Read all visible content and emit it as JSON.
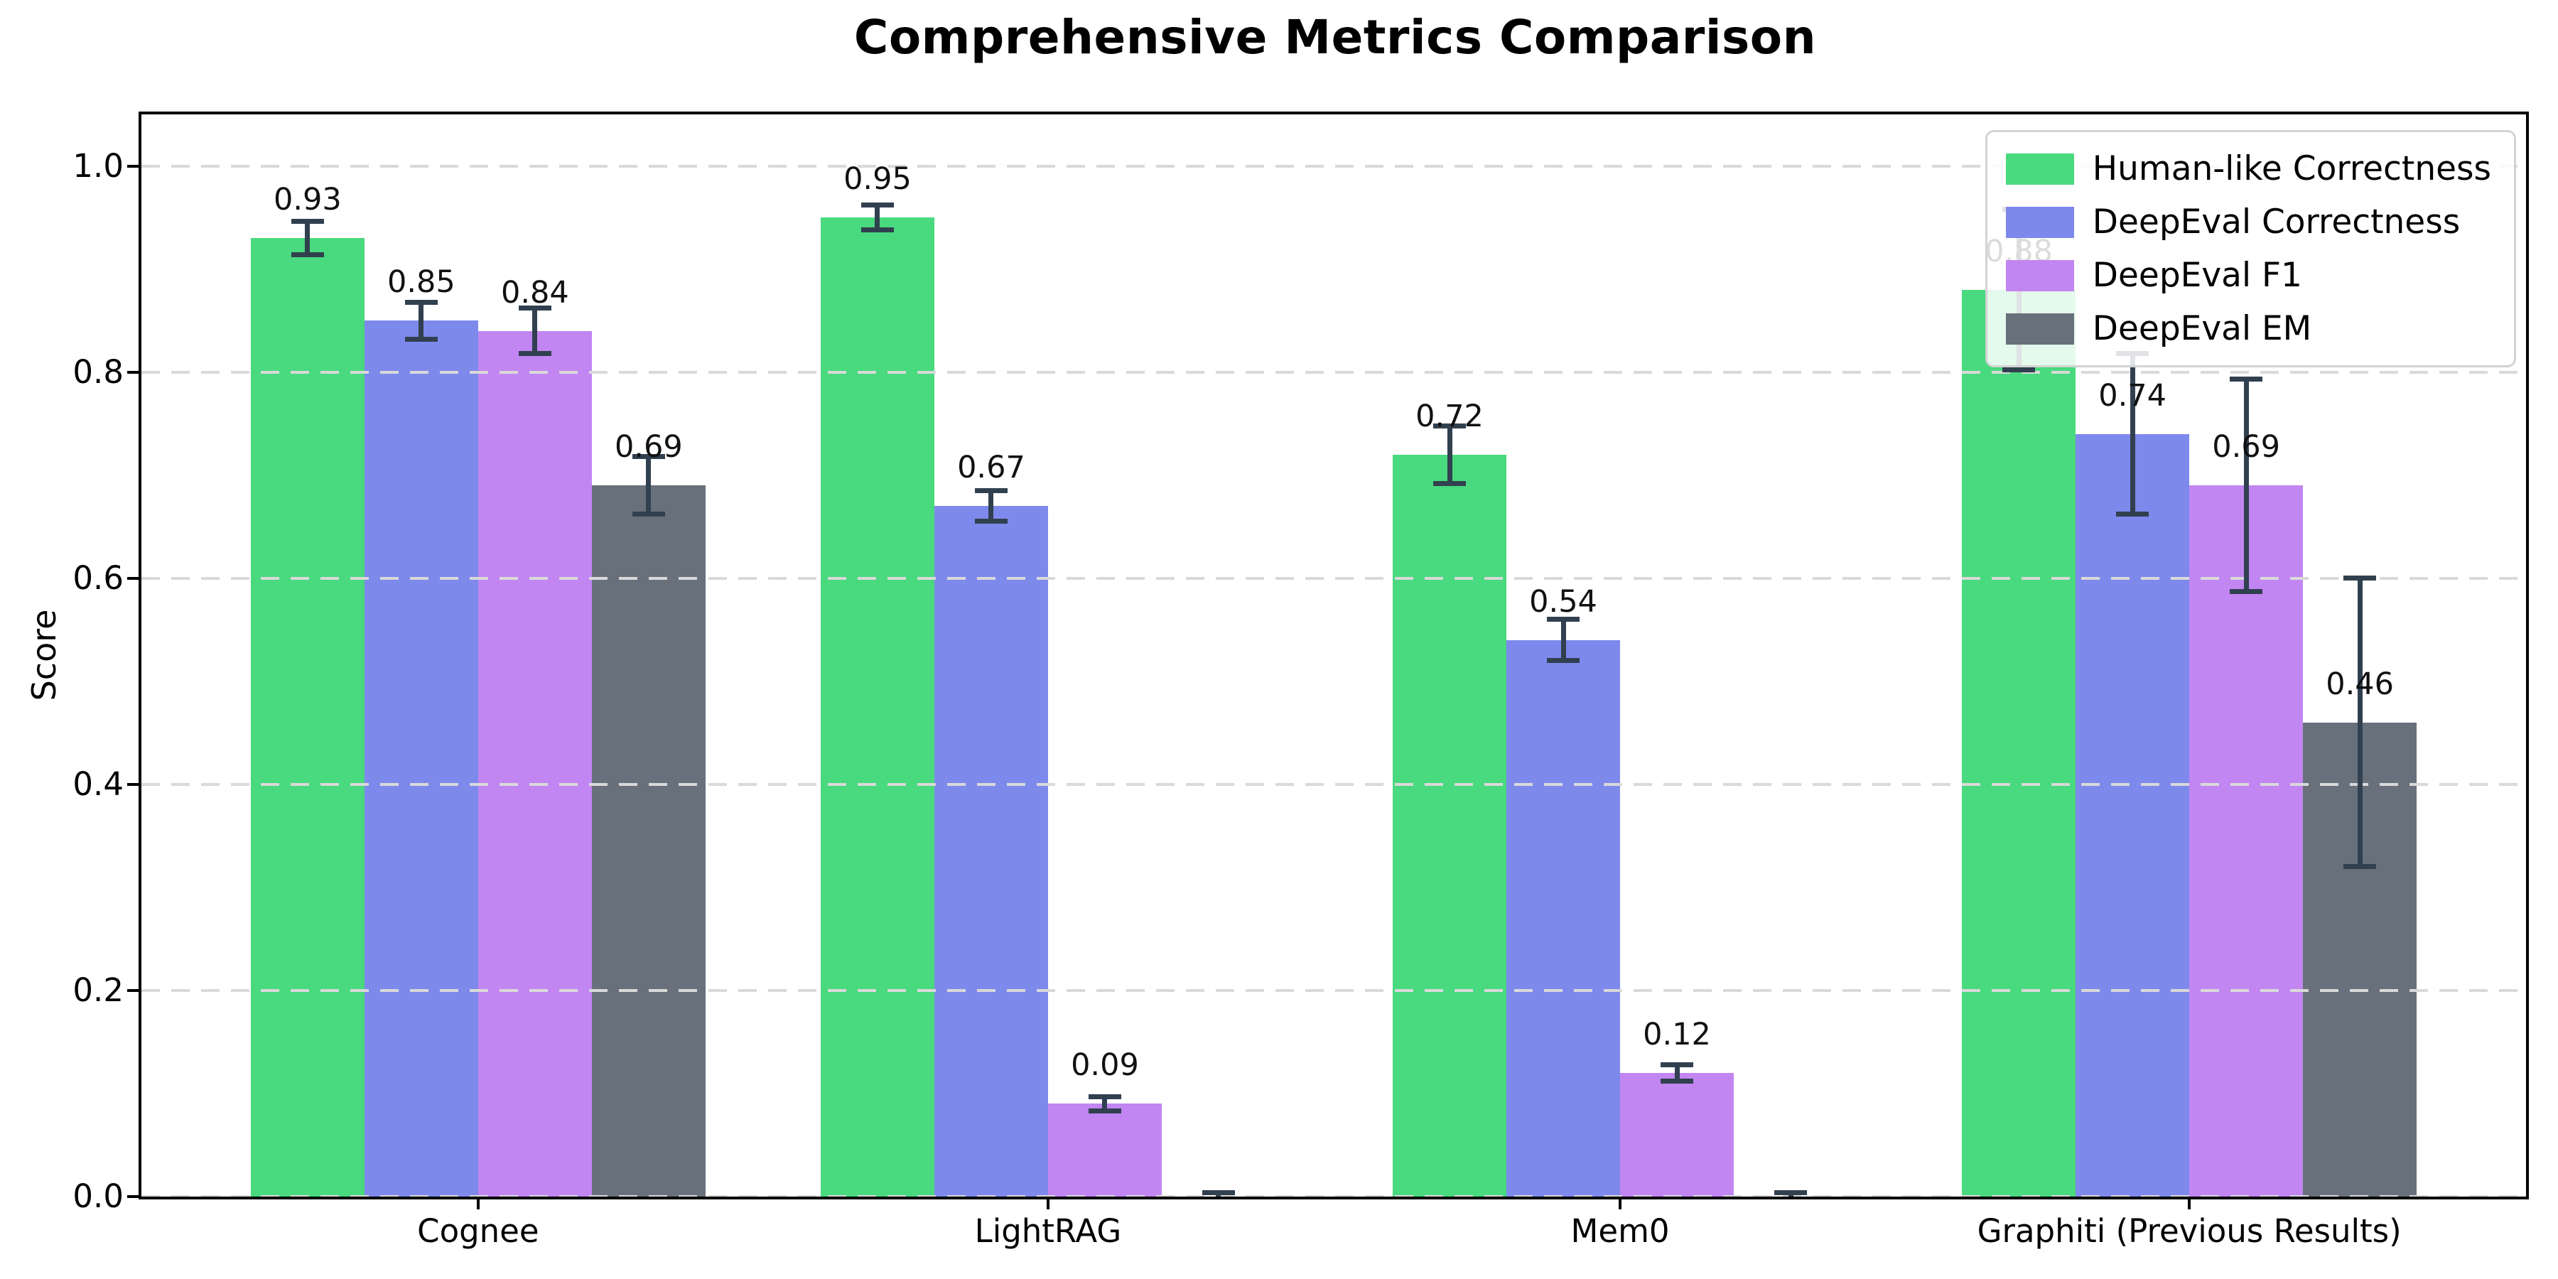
{
  "chart_data": {
    "type": "bar",
    "title": "Comprehensive Metrics Comparison",
    "ylabel": "Score",
    "xlabel": "",
    "categories": [
      "Cognee",
      "LightRAG",
      "Mem0",
      "Graphiti (Previous Results)"
    ],
    "series": [
      {
        "name": "Human-like Correctness",
        "color": "#49d97e",
        "values": [
          0.93,
          0.95,
          0.72,
          0.88
        ],
        "errors": [
          0.016,
          0.012,
          0.028,
          0.078
        ],
        "labels": [
          "0.93",
          "0.95",
          "0.72",
          "0.88"
        ]
      },
      {
        "name": "DeepEval Correctness",
        "color": "#7e89ec",
        "values": [
          0.85,
          0.67,
          0.54,
          0.74
        ],
        "errors": [
          0.018,
          0.015,
          0.02,
          0.078
        ],
        "labels": [
          "0.85",
          "0.67",
          "0.54",
          "0.74"
        ]
      },
      {
        "name": "DeepEval F1",
        "color": "#c186f2",
        "values": [
          0.84,
          0.09,
          0.12,
          0.69
        ],
        "errors": [
          0.022,
          0.007,
          0.008,
          0.103
        ],
        "labels": [
          "0.84",
          "0.09",
          "0.12",
          "0.69"
        ]
      },
      {
        "name": "DeepEval EM",
        "color": "#68707b",
        "values": [
          0.69,
          0.0,
          0.0,
          0.46
        ],
        "errors": [
          0.028,
          0.004,
          0.004,
          0.14
        ],
        "labels": [
          "0.69",
          null,
          null,
          "0.46"
        ]
      }
    ],
    "yticks": [
      0.0,
      0.2,
      0.4,
      0.6,
      0.8,
      1.0
    ],
    "ytick_labels": [
      "0.0",
      "0.2",
      "0.4",
      "0.6",
      "0.8",
      "1.0"
    ],
    "ylim": [
      0,
      1.05
    ],
    "grid": "dashed-horizontal-over-bars",
    "legend_position": "upper right",
    "error_bar_color": "#31404f",
    "value_label_offset": 0.02
  }
}
